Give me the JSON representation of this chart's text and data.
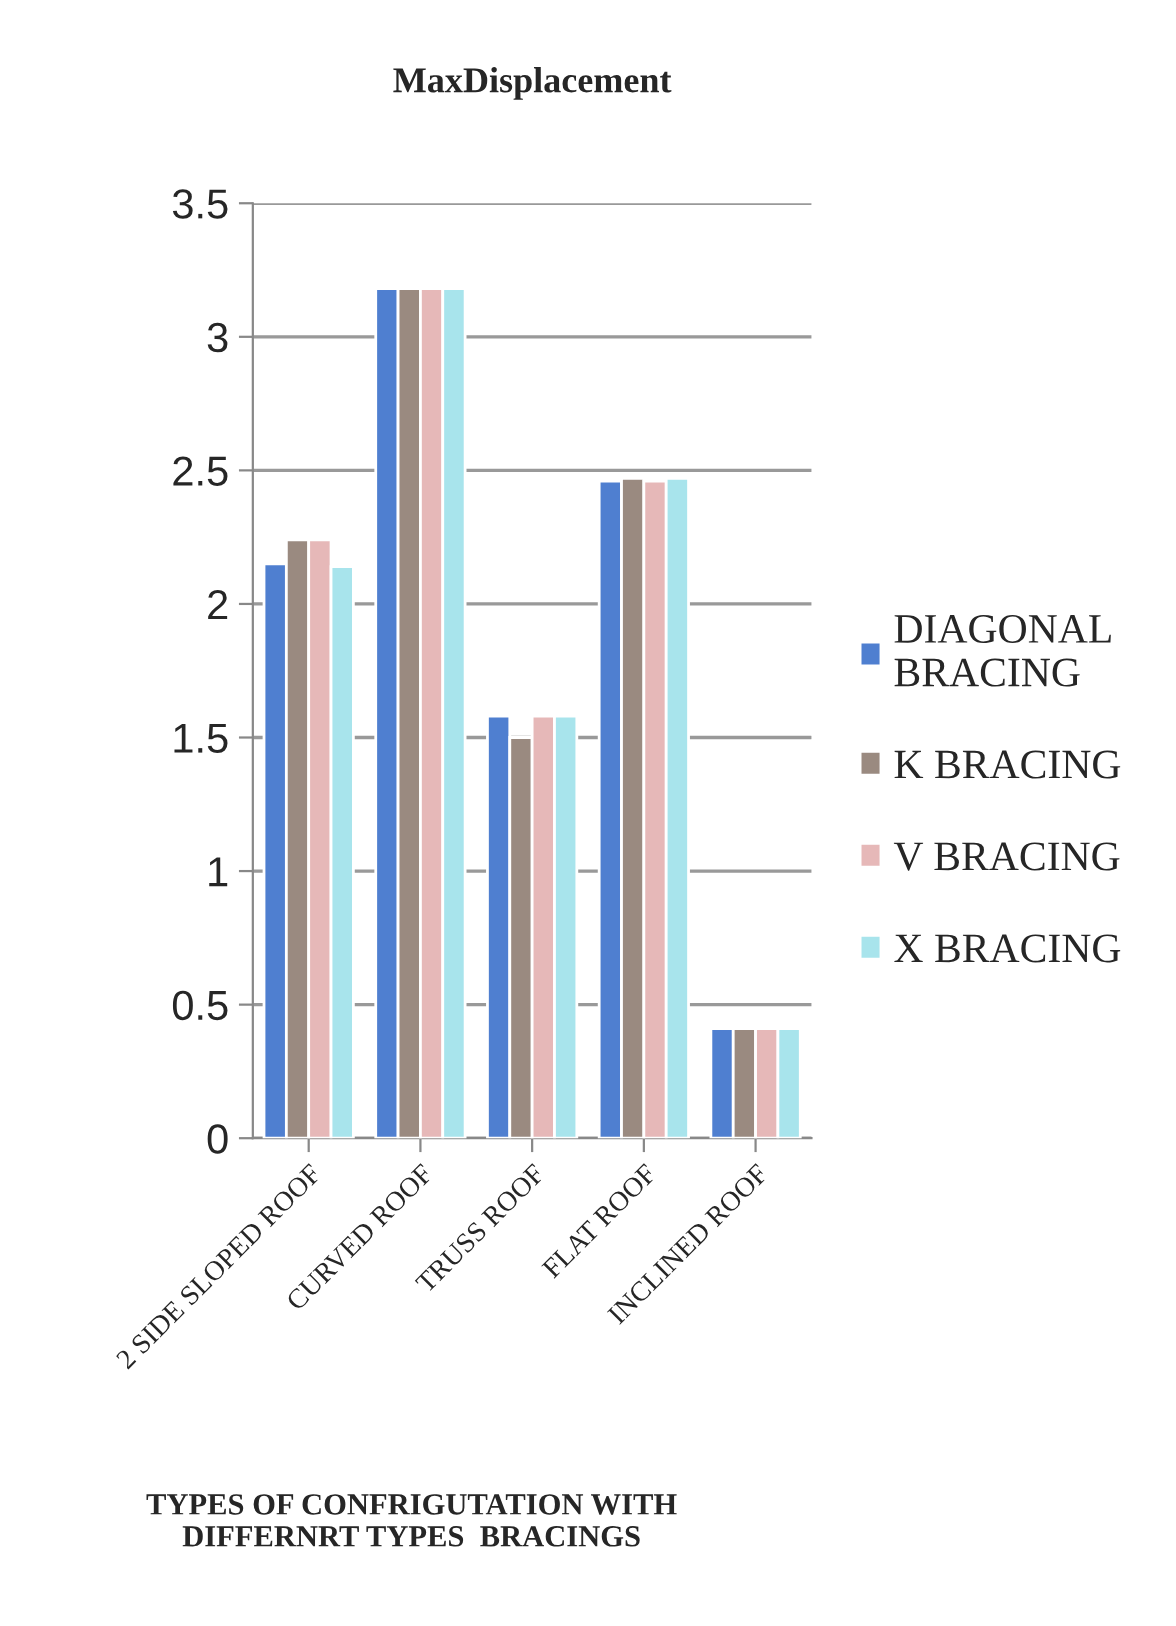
{
  "chart_data": {
    "type": "bar",
    "title": "MaxDisplacement",
    "xlabel": "TYPES OF CONFRIGUTATION WITH\nDIFFERNRT TYPES  BRACINGS",
    "categories": [
      "2 SIDE SLOPED ROOF",
      "CURVED ROOF",
      "TRUSS ROOF",
      "FLAT ROOF",
      "INCLINED ROOF"
    ],
    "series": [
      {
        "name": "DIAGONAL\nBRACING",
        "color": "#4f7fd0",
        "values": [
          2.15,
          3.18,
          1.58,
          2.46,
          0.41
        ]
      },
      {
        "name": "K BRACING",
        "color": "#9a8a80",
        "values": [
          2.24,
          3.18,
          1.5,
          2.47,
          0.41
        ]
      },
      {
        "name": "V BRACING",
        "color": "#e6b8b8",
        "values": [
          2.24,
          3.18,
          1.58,
          2.46,
          0.41
        ]
      },
      {
        "name": "X BRACING",
        "color": "#a8e4ec",
        "values": [
          2.14,
          3.18,
          1.58,
          2.47,
          0.41
        ]
      }
    ],
    "ylim": [
      0,
      3.5
    ],
    "yticks": [
      0,
      0.5,
      1,
      1.5,
      2,
      2.5,
      3,
      3.5
    ],
    "grid": "y",
    "legend": "right"
  }
}
